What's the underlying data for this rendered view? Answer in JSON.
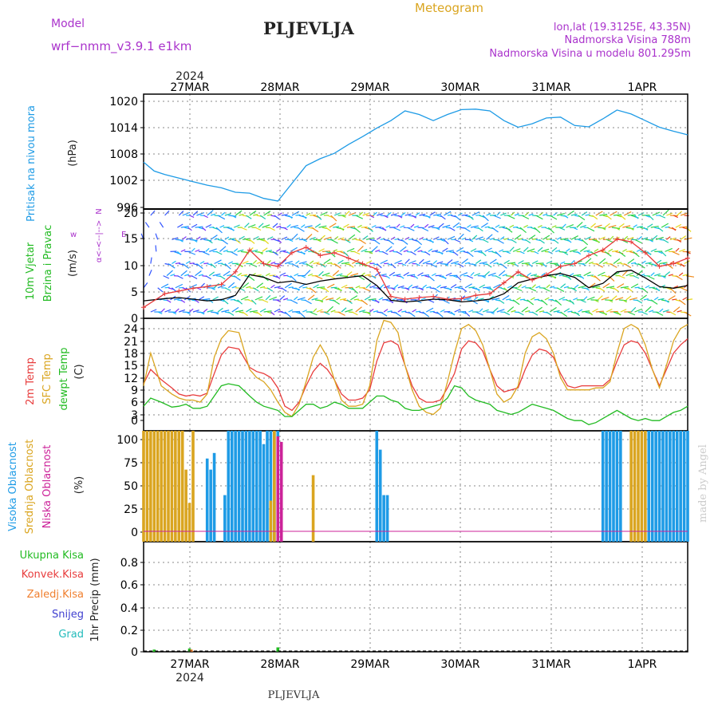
{
  "header": {
    "model_label": "Model",
    "model_name": "wrf−nmm_v3.9.1  e1km",
    "station": "PLJEVLJA",
    "meteogram": "Meteogram",
    "lonlat": "lon,lat (19.3125E, 43.35N)",
    "elevation": "Nadmorska Visina 788m",
    "model_elevation": "Nadmorska Visina u modelu 801.295m",
    "footer_station": "PLJEVLJA",
    "watermark": "made by Angel"
  },
  "colors": {
    "pressure": "#1e9be6",
    "temp2m": "#e83c3c",
    "sfc": "#daa520",
    "dew": "#22bb22",
    "high_cloud": "#1e9be6",
    "mid_cloud": "#daa520",
    "low_cloud": "#cc2299",
    "conv": "#e83c3c",
    "frozen": "#f08030",
    "snow": "#4040d0",
    "hail": "#22bbbb"
  },
  "x_axis": {
    "year": "2024",
    "days": [
      "27MAR",
      "28MAR",
      "29MAR",
      "30MAR",
      "31MAR",
      "1APR"
    ]
  },
  "chart_data": [
    {
      "type": "line",
      "panel": "pressure",
      "ylabel": "Pritisak na nivou mora",
      "unit": "(hPa)",
      "yticks": [
        "1020",
        "1014",
        "1008",
        "1002",
        "996"
      ],
      "ylim": [
        996,
        1022
      ],
      "x_unit": "hours from 27MAR 00 UTC",
      "xlim": [
        -10,
        144
      ],
      "series": [
        {
          "color": "pressure",
          "x": [
            -10,
            -7,
            -4,
            0,
            4,
            8,
            12,
            16,
            20,
            24,
            28,
            32,
            36,
            40,
            44,
            48,
            52,
            56,
            60,
            64,
            68,
            72,
            76,
            80,
            84,
            88,
            92,
            96,
            100,
            104,
            108,
            112,
            116,
            120,
            124,
            128,
            132,
            136,
            140,
            144
          ],
          "values": [
            1006.6,
            1004.6,
            1003.8,
            1003.0,
            1002.2,
            1001.4,
            1000.8,
            999.8,
            999.6,
            998.4,
            997.8,
            1001.8,
            1005.8,
            1007.4,
            1008.6,
            1010.6,
            1012.4,
            1014.3,
            1016.0,
            1018.2,
            1017.4,
            1016.0,
            1017.4,
            1018.5,
            1018.6,
            1018.2,
            1016.0,
            1014.5,
            1015.3,
            1016.6,
            1016.8,
            1014.9,
            1014.6,
            1016.4,
            1018.4,
            1017.5,
            1016.0,
            1014.5,
            1013.6,
            1012.8
          ]
        }
      ]
    },
    {
      "type": "line",
      "panel": "wind",
      "ylabel": "10m Vjetar Brzina i Pravac",
      "unit": "(m/s)",
      "yticks": [
        "20",
        "15",
        "10",
        "5",
        "0"
      ],
      "ylim": [
        0,
        20
      ],
      "xlim": [
        -10,
        144
      ],
      "legend_left": "w",
      "legend_right": "E",
      "legend_top": "N",
      "legend_arrows": "<--|-->",
      "legend_bottom": "α<--",
      "series": [
        {
          "color": "#000000",
          "x": [
            -10,
            -4,
            0,
            4,
            8,
            12,
            16,
            20,
            24,
            28,
            32,
            36,
            40,
            44,
            48,
            52,
            56,
            60,
            64,
            68,
            72,
            76,
            80,
            84,
            88,
            92,
            96,
            100,
            104,
            108,
            112,
            116,
            120,
            124,
            128,
            132,
            136,
            140,
            144
          ],
          "values": [
            3.2,
            3.6,
            3.8,
            3.5,
            3.2,
            3.4,
            4.2,
            8.0,
            7.5,
            6.5,
            6.8,
            6.2,
            6.8,
            7.2,
            7.5,
            7.8,
            6.0,
            3.3,
            3.0,
            3.2,
            3.5,
            3.4,
            3.0,
            3.2,
            3.5,
            4.5,
            6.5,
            7.2,
            7.8,
            8.2,
            7.5,
            5.6,
            6.4,
            8.5,
            8.8,
            7.4,
            5.8,
            5.5,
            6.0
          ]
        },
        {
          "color": "#e83c3c",
          "x": [
            -10,
            -4,
            0,
            4,
            8,
            12,
            16,
            20,
            24,
            28,
            32,
            36,
            40,
            44,
            48,
            52,
            56,
            60,
            64,
            68,
            72,
            76,
            80,
            84,
            88,
            92,
            96,
            100,
            104,
            108,
            112,
            116,
            120,
            124,
            128,
            132,
            136,
            140,
            144
          ],
          "values": [
            2.0,
            4.5,
            5.0,
            5.5,
            5.8,
            6.2,
            8.5,
            12.5,
            10.0,
            9.5,
            12.0,
            13.0,
            11.5,
            12.0,
            11.0,
            10.0,
            9.0,
            4.0,
            3.5,
            3.8,
            4.0,
            3.5,
            3.6,
            4.2,
            4.5,
            6.5,
            8.5,
            7.0,
            8.0,
            9.5,
            10.0,
            11.5,
            12.5,
            14.5,
            14.0,
            12.0,
            9.5,
            10.0,
            11.0
          ]
        }
      ]
    },
    {
      "type": "line",
      "panel": "temperature",
      "ylabels": [
        "2m Temp",
        "SFC Temp",
        "dewpt Temp"
      ],
      "unit": "(C)",
      "yticks": [
        "24",
        "21",
        "18",
        "15",
        "12",
        "9",
        "6",
        "3",
        "0"
      ],
      "ylim": [
        -2,
        25.5
      ],
      "xlim": [
        -10,
        144
      ],
      "series": [
        {
          "name": "2m Temp",
          "color": "temp2m",
          "x": [
            -10,
            -8,
            -5,
            -2,
            0,
            2,
            4,
            6,
            8,
            10,
            12,
            14,
            17,
            20,
            22,
            24,
            26,
            28,
            30,
            32,
            34,
            36,
            38,
            40,
            42,
            44,
            46,
            48,
            50,
            52,
            54,
            56,
            58,
            60,
            62,
            64,
            66,
            68,
            70,
            72,
            74,
            76,
            78,
            80,
            82,
            84,
            86,
            88,
            90,
            92,
            94,
            96,
            98,
            100,
            102,
            104,
            106,
            108,
            110,
            112,
            114,
            116,
            118,
            120,
            122,
            124,
            126,
            128,
            130,
            132,
            134,
            136,
            138,
            140,
            142,
            144
          ],
          "values": [
            9.5,
            13.0,
            10.5,
            8.5,
            7.0,
            6.5,
            6.8,
            6.5,
            7.2,
            12.0,
            16.5,
            18.5,
            18.0,
            13.5,
            12.5,
            12.0,
            11.0,
            8.5,
            4.0,
            3.0,
            5.0,
            9.0,
            12.5,
            14.5,
            13.0,
            10.5,
            7.0,
            5.5,
            5.5,
            6.0,
            8.0,
            15.0,
            19.5,
            20.0,
            19.0,
            14.0,
            9.0,
            6.0,
            5.0,
            5.0,
            5.5,
            8.5,
            12.0,
            18.0,
            20.0,
            19.5,
            17.5,
            13.0,
            9.0,
            7.5,
            8.0,
            8.5,
            13.0,
            16.5,
            18.0,
            17.5,
            16.0,
            12.0,
            9.0,
            8.5,
            9.0,
            9.0,
            9.0,
            9.0,
            10.5,
            15.0,
            19.0,
            20.0,
            19.5,
            17.0,
            13.0,
            9.0,
            13.0,
            17.0,
            19.0,
            20.5
          ]
        },
        {
          "name": "SFC Temp",
          "color": "sfc",
          "x": [
            -10,
            -8,
            -5,
            -2,
            0,
            2,
            4,
            6,
            8,
            10,
            12,
            14,
            17,
            20,
            22,
            24,
            26,
            28,
            30,
            32,
            34,
            36,
            38,
            40,
            42,
            44,
            46,
            48,
            50,
            52,
            54,
            56,
            58,
            60,
            62,
            64,
            66,
            68,
            70,
            72,
            74,
            76,
            78,
            80,
            82,
            84,
            86,
            88,
            90,
            92,
            94,
            96,
            98,
            100,
            102,
            104,
            106,
            108,
            110,
            112,
            114,
            116,
            118,
            120,
            122,
            124,
            126,
            128,
            130,
            132,
            134,
            136,
            138,
            140,
            142,
            144
          ],
          "values": [
            9.0,
            17.0,
            9.0,
            7.0,
            6.0,
            5.5,
            5.5,
            5.0,
            7.0,
            16.0,
            20.5,
            22.5,
            22.0,
            13.0,
            11.0,
            10.0,
            8.0,
            5.0,
            2.5,
            1.5,
            4.5,
            10.0,
            16.0,
            19.0,
            16.0,
            10.5,
            5.5,
            4.0,
            4.0,
            4.5,
            9.0,
            20.0,
            25.0,
            24.5,
            22.0,
            14.0,
            8.0,
            4.0,
            2.5,
            2.0,
            3.5,
            10.0,
            17.0,
            23.0,
            24.0,
            22.5,
            19.0,
            13.0,
            7.0,
            5.0,
            6.0,
            9.0,
            17.0,
            21.0,
            22.0,
            20.5,
            17.0,
            11.0,
            8.0,
            8.0,
            8.0,
            8.0,
            8.5,
            8.5,
            10.0,
            17.0,
            23.0,
            24.0,
            23.0,
            19.0,
            13.0,
            8.5,
            14.0,
            20.0,
            23.0,
            24.0
          ]
        },
        {
          "name": "dewpt Temp",
          "color": "dew",
          "x": [
            -10,
            -8,
            -5,
            -2,
            0,
            2,
            4,
            6,
            8,
            10,
            12,
            14,
            17,
            20,
            22,
            24,
            26,
            28,
            30,
            32,
            34,
            36,
            38,
            40,
            42,
            44,
            46,
            48,
            50,
            52,
            54,
            56,
            58,
            60,
            62,
            64,
            66,
            68,
            70,
            72,
            74,
            76,
            78,
            80,
            82,
            84,
            86,
            88,
            90,
            92,
            94,
            96,
            98,
            100,
            102,
            104,
            106,
            108,
            110,
            112,
            114,
            116,
            118,
            120,
            122,
            124,
            126,
            128,
            130,
            132,
            134,
            136,
            138,
            140,
            142,
            144
          ],
          "values": [
            4.0,
            6.0,
            5.0,
            3.8,
            4.0,
            4.5,
            3.5,
            3.5,
            4.0,
            6.5,
            9.0,
            9.5,
            9.0,
            6.5,
            5.0,
            4.0,
            3.5,
            3.0,
            1.5,
            1.5,
            3.0,
            4.5,
            4.5,
            3.5,
            4.0,
            5.0,
            4.5,
            3.5,
            3.5,
            3.5,
            5.0,
            6.5,
            6.5,
            5.5,
            5.0,
            3.5,
            3.0,
            3.0,
            3.5,
            4.0,
            4.5,
            6.0,
            9.0,
            8.5,
            6.5,
            5.5,
            5.0,
            4.5,
            3.0,
            2.5,
            2.0,
            2.5,
            3.5,
            4.5,
            4.0,
            3.5,
            3.0,
            2.0,
            1.0,
            0.5,
            0.5,
            -0.5,
            0.0,
            1.0,
            2.0,
            3.0,
            2.0,
            1.0,
            0.5,
            1.0,
            0.5,
            0.5,
            1.5,
            2.5,
            3.0,
            4.0
          ]
        }
      ]
    },
    {
      "type": "bar",
      "panel": "clouds",
      "ylabels": [
        "Visoka Oblacnost",
        "Srednja Oblacnost",
        "Niska Oblacnost"
      ],
      "unit": "(%)",
      "yticks": [
        "100",
        "75",
        "50",
        "25",
        "0"
      ],
      "ylim": [
        0,
        100
      ],
      "xlim": [
        -10,
        144
      ],
      "series": [
        {
          "name": "Visoka Oblacnost",
          "color": "high_cloud",
          "x": [
            8,
            9,
            10,
            13,
            14,
            15,
            16,
            17,
            18,
            19,
            20,
            21,
            22,
            23,
            24,
            25,
            26,
            27,
            28,
            56,
            57,
            58,
            59,
            120,
            121,
            122,
            123,
            124,
            125,
            133,
            134,
            135,
            136,
            137,
            138,
            139,
            140,
            141,
            142,
            143,
            144
          ],
          "values": [
            75,
            65,
            80,
            42,
            100,
            100,
            100,
            100,
            100,
            100,
            100,
            100,
            100,
            100,
            88,
            100,
            100,
            100,
            100,
            100,
            83,
            42,
            42,
            100,
            100,
            100,
            100,
            100,
            100,
            100,
            100,
            100,
            100,
            100,
            100,
            100,
            100,
            100,
            100,
            100,
            100
          ]
        },
        {
          "name": "Srednja Oblacnost",
          "color": "mid_cloud",
          "x": [
            -10,
            -9,
            -8,
            -7,
            -6,
            -5,
            -4,
            -3,
            -2,
            -1,
            0,
            1,
            2,
            3,
            4,
            26,
            27,
            38,
            128,
            129,
            130,
            131,
            132
          ],
          "values": [
            100,
            100,
            100,
            100,
            100,
            100,
            100,
            100,
            100,
            100,
            100,
            100,
            65,
            35,
            100,
            37,
            100,
            60,
            100,
            100,
            100,
            100,
            100
          ]
        },
        {
          "name": "Niska Oblacnost",
          "color": "low_cloud",
          "x": [
            28,
            29
          ],
          "values": [
            95,
            90
          ]
        }
      ]
    },
    {
      "type": "bar",
      "panel": "precip",
      "ylabels": [
        "Ukupna Kisa",
        "Konvek.Kisa",
        "Zaledj.Kisa",
        "Snijeg",
        "Grad"
      ],
      "unit": "1hr Precip (mm)",
      "yticks": [
        "0.8",
        "0.6",
        "0.4",
        "0.2",
        "0"
      ],
      "ylim": [
        0,
        1.0
      ],
      "xlim": [
        -10,
        144
      ],
      "series": [
        {
          "name": "Ukupna Kisa",
          "color": "dew",
          "x": [
            -7,
            3,
            28
          ],
          "values": [
            0.02,
            0.03,
            0.04
          ]
        },
        {
          "name": "Zaledj.Kisa",
          "color": "frozen",
          "x": [
            3.5
          ],
          "values": [
            0.02
          ]
        }
      ]
    }
  ]
}
